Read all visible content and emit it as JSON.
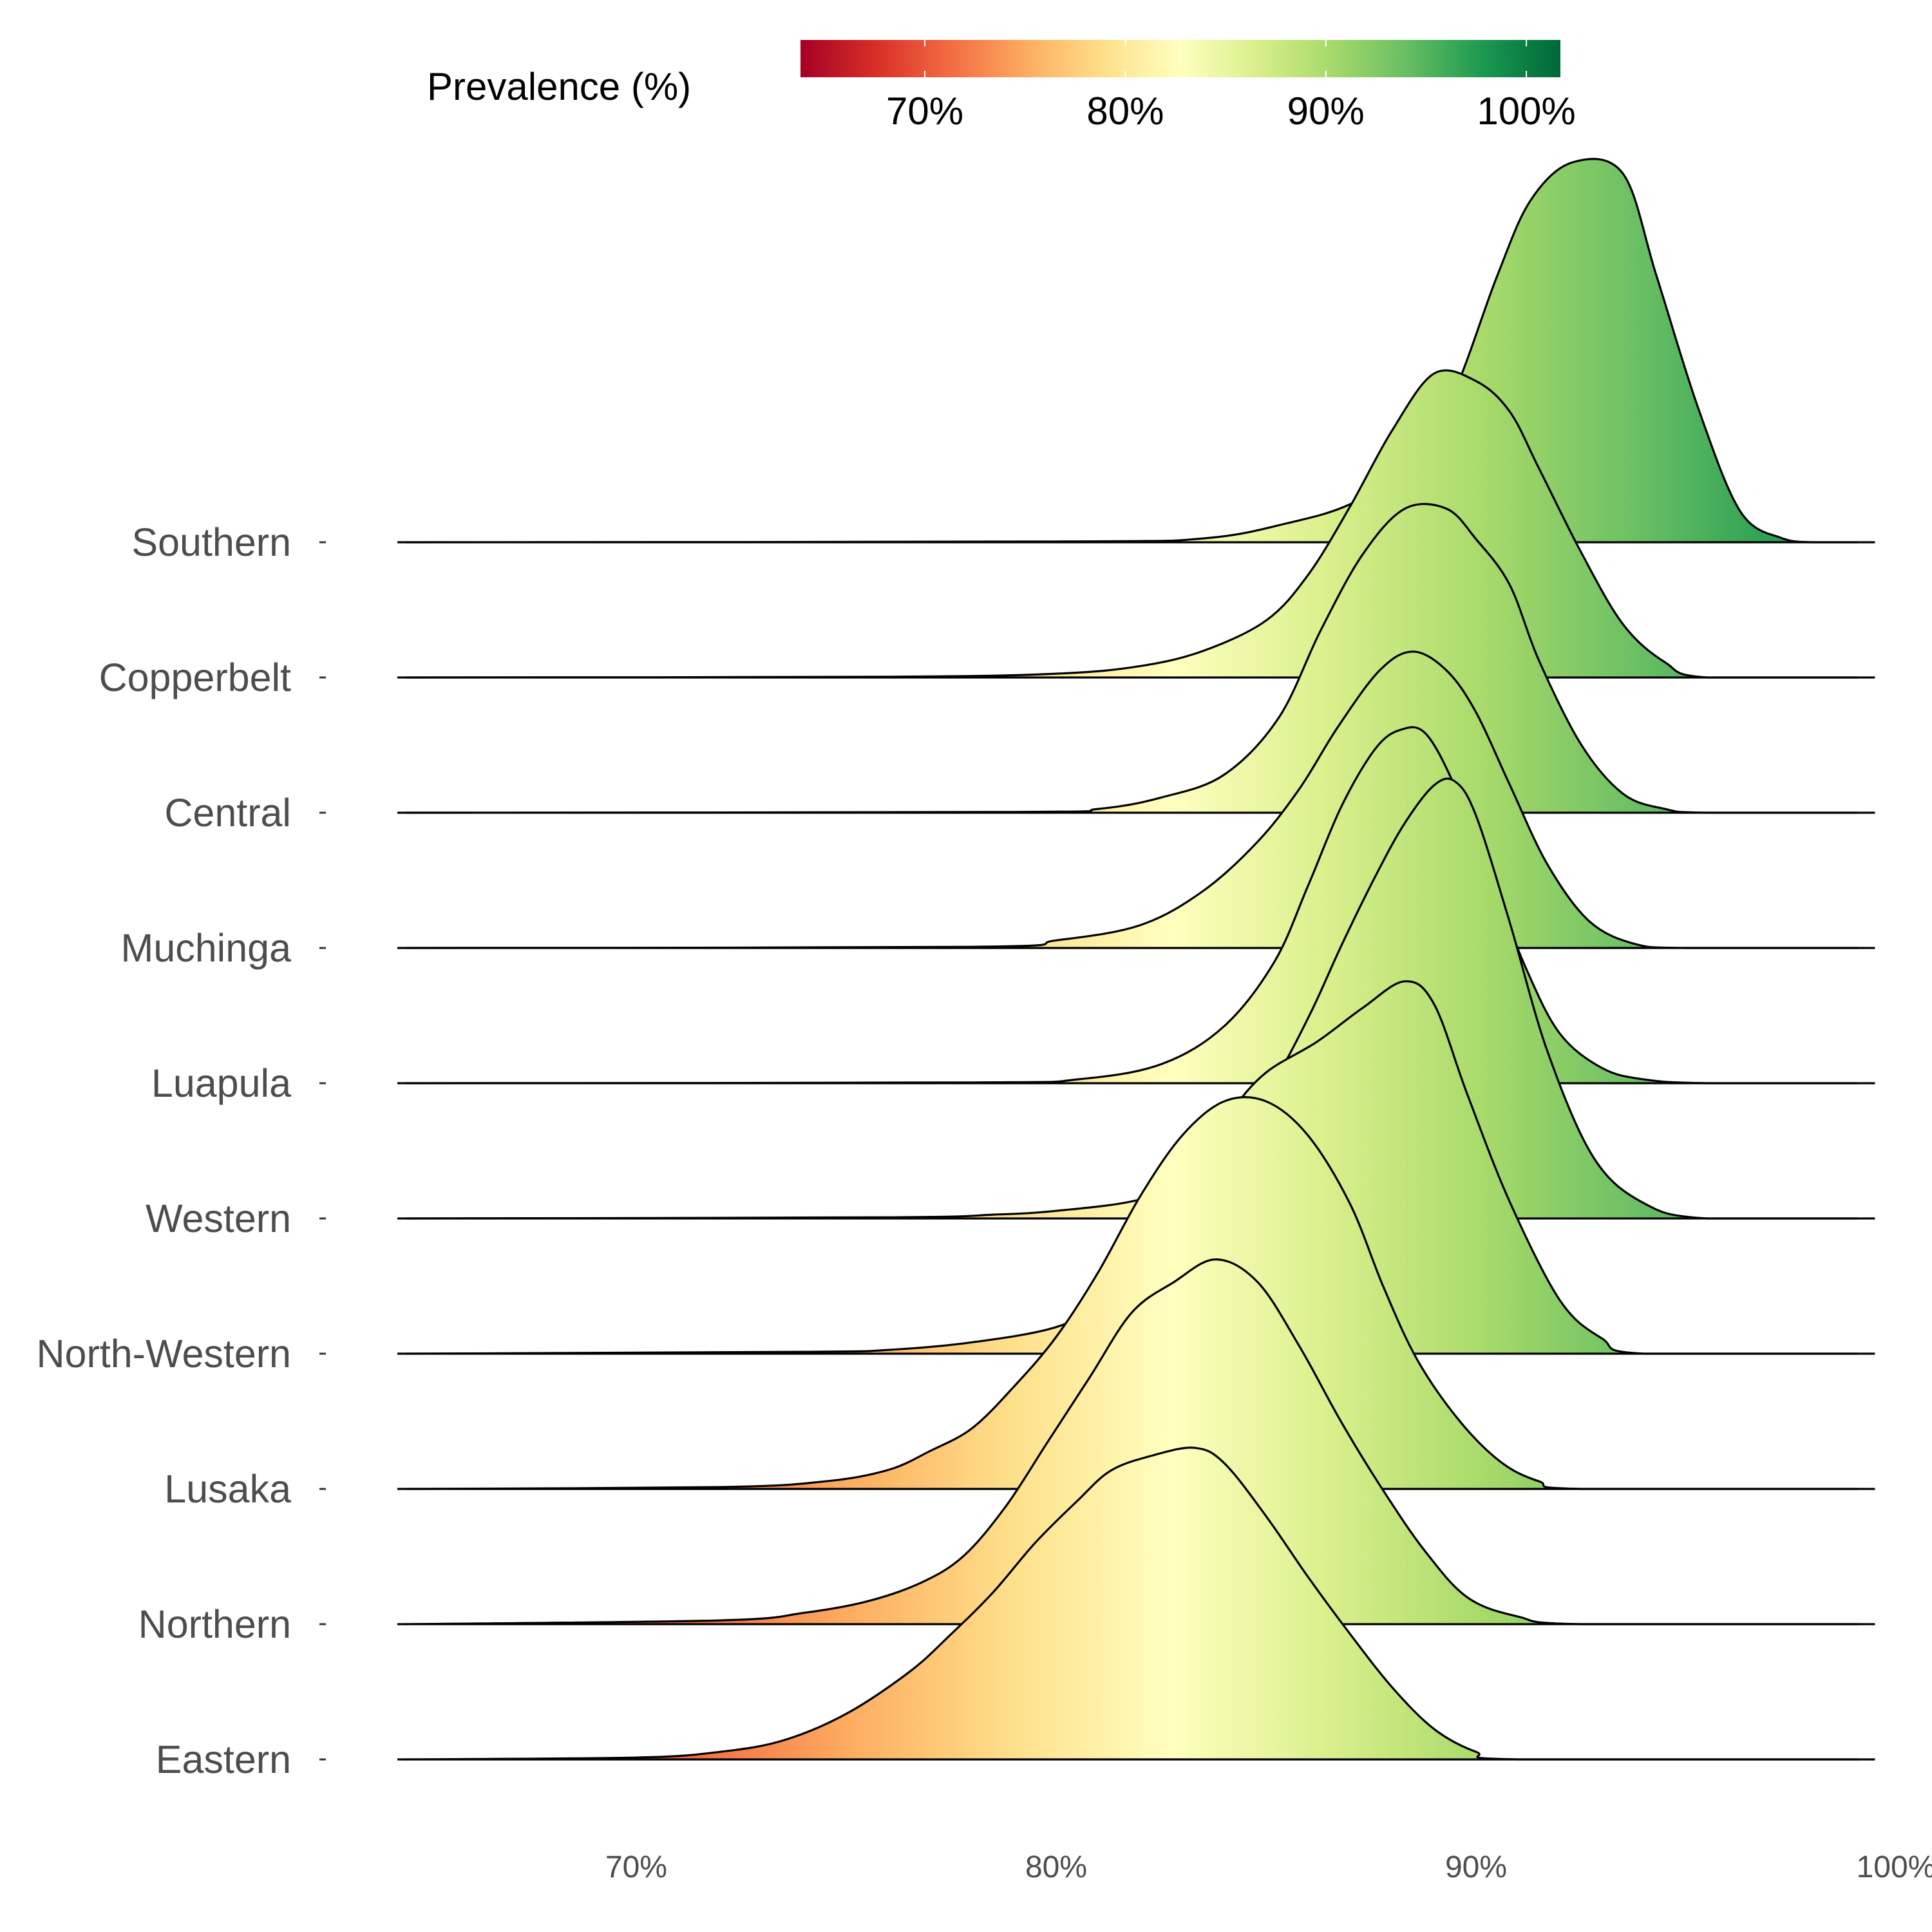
{
  "chart_data": {
    "type": "ridgeline",
    "title": "",
    "xlabel": "",
    "ylabel": "",
    "xlim": [
      64.5,
      100
    ],
    "x_ticks": [
      70,
      80,
      90,
      100
    ],
    "x_tick_labels": [
      "70%",
      "80%",
      "90%",
      "100%"
    ],
    "legend": {
      "title": "Prevalence (%)",
      "placement": "top",
      "range": [
        63.8,
        101.7
      ],
      "tick_values": [
        70,
        80,
        90,
        100
      ],
      "tick_labels": [
        "70%",
        "80%",
        "90%",
        "100%"
      ],
      "palette": "RdYlGn",
      "colors": [
        "#a50026",
        "#d73027",
        "#f46d43",
        "#fdae61",
        "#fee08b",
        "#ffffbf",
        "#d9ef8b",
        "#a6d96a",
        "#66bd63",
        "#1a9850",
        "#006837"
      ]
    },
    "series": [
      {
        "name": "Southern",
        "points": [
          [
            64.5,
            0
          ],
          [
            80,
            0.002
          ],
          [
            83.5,
            0.01
          ],
          [
            85.5,
            0.05
          ],
          [
            87,
            0.1
          ],
          [
            88.5,
            0.2
          ],
          [
            89.5,
            0.4
          ],
          [
            90.5,
            0.7
          ],
          [
            91.3,
            0.9
          ],
          [
            92.3,
            1.0
          ],
          [
            93.5,
            0.97
          ],
          [
            94.3,
            0.7
          ],
          [
            95.3,
            0.35
          ],
          [
            96.3,
            0.08
          ],
          [
            97.3,
            0.01
          ],
          [
            98,
            0
          ],
          [
            99.5,
            0
          ]
        ]
      },
      {
        "name": "Copperbelt",
        "points": [
          [
            64.5,
            0
          ],
          [
            76,
            0.002
          ],
          [
            80,
            0.01
          ],
          [
            82,
            0.03
          ],
          [
            83.5,
            0.07
          ],
          [
            85,
            0.15
          ],
          [
            86,
            0.27
          ],
          [
            87,
            0.45
          ],
          [
            88,
            0.65
          ],
          [
            89,
            0.8
          ],
          [
            90,
            0.78
          ],
          [
            90.8,
            0.7
          ],
          [
            91.5,
            0.55
          ],
          [
            92.5,
            0.33
          ],
          [
            93.5,
            0.14
          ],
          [
            94.5,
            0.04
          ],
          [
            95.5,
            0
          ],
          [
            99.5,
            0
          ]
        ]
      },
      {
        "name": "Central",
        "points": [
          [
            64.5,
            0
          ],
          [
            79,
            0.002
          ],
          [
            81,
            0.01
          ],
          [
            82.5,
            0.04
          ],
          [
            84,
            0.1
          ],
          [
            85.3,
            0.25
          ],
          [
            86.3,
            0.48
          ],
          [
            87.3,
            0.68
          ],
          [
            88.3,
            0.8
          ],
          [
            89.3,
            0.8
          ],
          [
            90,
            0.72
          ],
          [
            90.8,
            0.6
          ],
          [
            91.5,
            0.4
          ],
          [
            92.5,
            0.18
          ],
          [
            93.5,
            0.05
          ],
          [
            94.5,
            0.01
          ],
          [
            95.5,
            0
          ],
          [
            99.5,
            0
          ]
        ]
      },
      {
        "name": "Muchinga",
        "points": [
          [
            64.5,
            0
          ],
          [
            78,
            0.003
          ],
          [
            80,
            0.02
          ],
          [
            82,
            0.06
          ],
          [
            83.5,
            0.15
          ],
          [
            84.8,
            0.28
          ],
          [
            85.8,
            0.42
          ],
          [
            86.7,
            0.58
          ],
          [
            87.7,
            0.73
          ],
          [
            88.5,
            0.78
          ],
          [
            89.3,
            0.73
          ],
          [
            90,
            0.62
          ],
          [
            90.8,
            0.43
          ],
          [
            91.7,
            0.22
          ],
          [
            92.7,
            0.07
          ],
          [
            93.8,
            0.01
          ],
          [
            95,
            0
          ],
          [
            99.5,
            0
          ]
        ]
      },
      {
        "name": "Luapula",
        "points": [
          [
            64.5,
            0
          ],
          [
            78,
            0.002
          ],
          [
            80.5,
            0.01
          ],
          [
            82.5,
            0.05
          ],
          [
            84,
            0.15
          ],
          [
            85.2,
            0.32
          ],
          [
            86,
            0.52
          ],
          [
            86.8,
            0.73
          ],
          [
            87.6,
            0.88
          ],
          [
            88.2,
            0.93
          ],
          [
            88.8,
            0.92
          ],
          [
            89.5,
            0.78
          ],
          [
            90.3,
            0.55
          ],
          [
            91.2,
            0.3
          ],
          [
            92,
            0.13
          ],
          [
            93,
            0.04
          ],
          [
            94,
            0.01
          ],
          [
            95.5,
            0
          ],
          [
            99.5,
            0
          ]
        ]
      },
      {
        "name": "Western",
        "points": [
          [
            64.5,
            0
          ],
          [
            76,
            0.003
          ],
          [
            78.5,
            0.01
          ],
          [
            80,
            0.02
          ],
          [
            82,
            0.05
          ],
          [
            83.5,
            0.12
          ],
          [
            84.5,
            0.24
          ],
          [
            85.3,
            0.38
          ],
          [
            86.1,
            0.55
          ],
          [
            86.8,
            0.72
          ],
          [
            87.6,
            0.9
          ],
          [
            88.3,
            1.04
          ],
          [
            89,
            1.14
          ],
          [
            89.5,
            1.15
          ],
          [
            90,
            1.06
          ],
          [
            90.8,
            0.78
          ],
          [
            91.7,
            0.44
          ],
          [
            92.8,
            0.16
          ],
          [
            94,
            0.04
          ],
          [
            95.5,
            0
          ],
          [
            99.5,
            0
          ]
        ]
      },
      {
        "name": "North-Western",
        "points": [
          [
            64.5,
            0
          ],
          [
            74,
            0.005
          ],
          [
            76,
            0.01
          ],
          [
            78,
            0.03
          ],
          [
            80,
            0.07
          ],
          [
            81.2,
            0.14
          ],
          [
            82,
            0.22
          ],
          [
            82.8,
            0.36
          ],
          [
            83.5,
            0.5
          ],
          [
            84.2,
            0.64
          ],
          [
            85,
            0.74
          ],
          [
            86.2,
            0.82
          ],
          [
            87.3,
            0.91
          ],
          [
            88.3,
            0.98
          ],
          [
            89,
            0.92
          ],
          [
            89.8,
            0.68
          ],
          [
            90.8,
            0.4
          ],
          [
            92,
            0.14
          ],
          [
            93,
            0.04
          ],
          [
            94,
            0
          ],
          [
            99.5,
            0
          ]
        ]
      },
      {
        "name": "Lusaka",
        "points": [
          [
            64.5,
            0
          ],
          [
            72,
            0.005
          ],
          [
            74.5,
            0.02
          ],
          [
            76,
            0.05
          ],
          [
            77,
            0.1
          ],
          [
            78,
            0.16
          ],
          [
            79,
            0.27
          ],
          [
            80,
            0.4
          ],
          [
            81,
            0.57
          ],
          [
            82,
            0.77
          ],
          [
            83,
            0.93
          ],
          [
            84,
            1.02
          ],
          [
            85,
            1.02
          ],
          [
            86,
            0.93
          ],
          [
            87,
            0.75
          ],
          [
            87.8,
            0.53
          ],
          [
            88.6,
            0.34
          ],
          [
            89.6,
            0.18
          ],
          [
            90.6,
            0.07
          ],
          [
            91.5,
            0.02
          ],
          [
            92.5,
            0
          ],
          [
            99.5,
            0
          ]
        ]
      },
      {
        "name": "Northern",
        "points": [
          [
            64.5,
            0
          ],
          [
            72,
            0.01
          ],
          [
            74,
            0.03
          ],
          [
            75.5,
            0.06
          ],
          [
            76.8,
            0.11
          ],
          [
            77.8,
            0.18
          ],
          [
            78.8,
            0.31
          ],
          [
            79.8,
            0.48
          ],
          [
            80.8,
            0.65
          ],
          [
            81.8,
            0.82
          ],
          [
            82.8,
            0.9
          ],
          [
            83.8,
            0.96
          ],
          [
            84.8,
            0.9
          ],
          [
            85.8,
            0.73
          ],
          [
            86.8,
            0.53
          ],
          [
            87.8,
            0.35
          ],
          [
            88.8,
            0.19
          ],
          [
            89.8,
            0.07
          ],
          [
            91,
            0.02
          ],
          [
            92.5,
            0
          ],
          [
            99.5,
            0
          ]
        ]
      },
      {
        "name": "Eastern",
        "points": [
          [
            64.5,
            0
          ],
          [
            70,
            0.005
          ],
          [
            72,
            0.02
          ],
          [
            73.5,
            0.05
          ],
          [
            75,
            0.12
          ],
          [
            76.5,
            0.23
          ],
          [
            77.5,
            0.33
          ],
          [
            78.5,
            0.44
          ],
          [
            79.5,
            0.57
          ],
          [
            80.5,
            0.68
          ],
          [
            81.3,
            0.76
          ],
          [
            82.3,
            0.8
          ],
          [
            83.3,
            0.82
          ],
          [
            84,
            0.78
          ],
          [
            85,
            0.64
          ],
          [
            86,
            0.48
          ],
          [
            87,
            0.33
          ],
          [
            88,
            0.19
          ],
          [
            89,
            0.08
          ],
          [
            90,
            0.02
          ],
          [
            91,
            0
          ],
          [
            99.5,
            0
          ]
        ]
      }
    ]
  }
}
